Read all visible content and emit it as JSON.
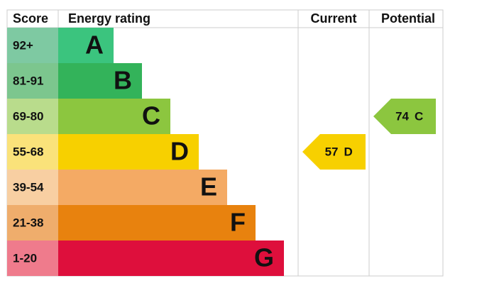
{
  "header": {
    "score": "Score",
    "rating": "Energy rating",
    "current": "Current",
    "potential": "Potential"
  },
  "bands": [
    {
      "score": "92+",
      "letter": "A",
      "color": "#3bc47e",
      "score_color": "#7ec9a2"
    },
    {
      "score": "81-91",
      "letter": "B",
      "color": "#33b35a",
      "score_color": "#7cc68e"
    },
    {
      "score": "69-80",
      "letter": "C",
      "color": "#8cc63f",
      "score_color": "#b9dc8c"
    },
    {
      "score": "55-68",
      "letter": "D",
      "color": "#f7d000",
      "score_color": "#fae27a"
    },
    {
      "score": "39-54",
      "letter": "E",
      "color": "#f4aa64",
      "score_color": "#f8cfa2"
    },
    {
      "score": "21-38",
      "letter": "F",
      "color": "#e8820e",
      "score_color": "#efad6c"
    },
    {
      "score": "1-20",
      "letter": "G",
      "color": "#de0f3c",
      "score_color": "#ef7b8c"
    }
  ],
  "current": {
    "score": 57,
    "rating": "D"
  },
  "potential": {
    "score": 74,
    "rating": "C"
  }
}
